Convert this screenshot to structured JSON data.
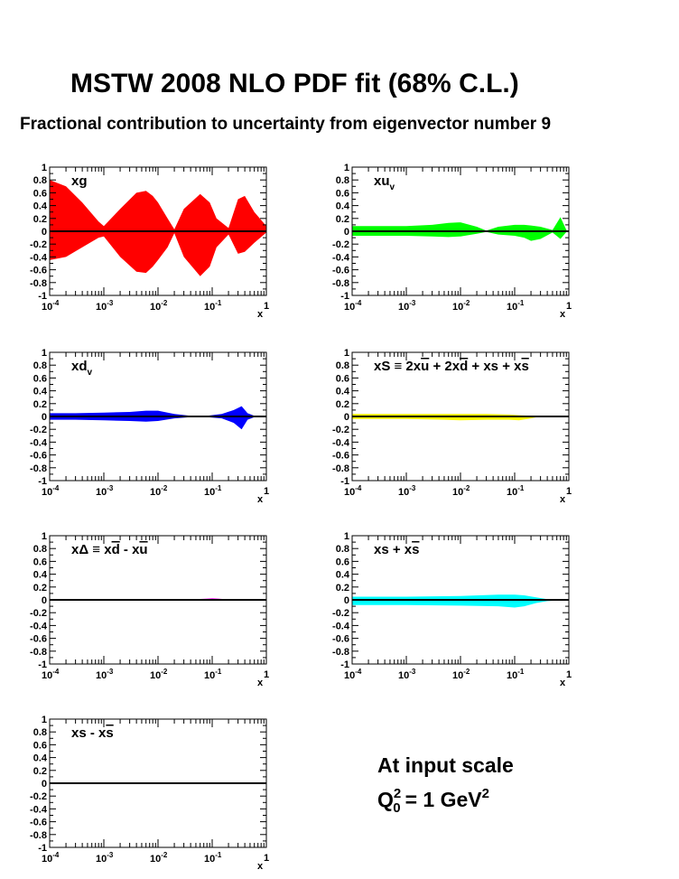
{
  "title": "MSTW 2008 NLO PDF fit (68% C.L.)",
  "subtitle": "Fractional contribution to uncertainty from eigenvector number 9",
  "note": {
    "line1": "At input scale",
    "q": "Q",
    "sub0": "0",
    "sup2": "2",
    "eq": "= 1 GeV",
    "gev_sup": "2"
  },
  "chart_data": [
    {
      "type": "area",
      "panel": "xg",
      "color": "#ff0000",
      "label": [
        {
          "t": "xg"
        }
      ],
      "xscale": "log",
      "xlim": [
        0.0001,
        1
      ],
      "ylim": [
        -1,
        1
      ],
      "xlabel": "x",
      "x": [
        0.0001,
        0.0002,
        0.0004,
        0.0008,
        0.001,
        0.002,
        0.004,
        0.006,
        0.008,
        0.01,
        0.015,
        0.02,
        0.03,
        0.06,
        0.09,
        0.12,
        0.2,
        0.3,
        0.4,
        0.6,
        1
      ],
      "upper": [
        0.8,
        0.7,
        0.45,
        0.15,
        0.08,
        0.35,
        0.6,
        0.63,
        0.55,
        0.45,
        0.2,
        0.03,
        0.35,
        0.58,
        0.45,
        0.2,
        0.05,
        0.5,
        0.55,
        0.3,
        0.08
      ],
      "lower": [
        -0.45,
        -0.4,
        -0.25,
        -0.1,
        -0.08,
        -0.4,
        -0.63,
        -0.65,
        -0.55,
        -0.45,
        -0.25,
        -0.03,
        -0.4,
        -0.7,
        -0.55,
        -0.25,
        -0.05,
        -0.35,
        -0.32,
        -0.18,
        -0.02
      ]
    },
    {
      "type": "area",
      "panel": "xuv",
      "color": "#00ff00",
      "label": [
        {
          "t": "xu"
        },
        {
          "t": "v",
          "sub": true
        }
      ],
      "xscale": "log",
      "xlim": [
        0.0001,
        1
      ],
      "ylim": [
        -1,
        1
      ],
      "xlabel": "x",
      "x": [
        0.0001,
        0.0003,
        0.001,
        0.003,
        0.006,
        0.01,
        0.02,
        0.03,
        0.05,
        0.1,
        0.15,
        0.2,
        0.3,
        0.5,
        0.7,
        0.9,
        1
      ],
      "upper": [
        0.08,
        0.08,
        0.08,
        0.1,
        0.13,
        0.14,
        0.07,
        0.01,
        0.07,
        0.1,
        0.1,
        0.09,
        0.07,
        0.02,
        0.22,
        0.02,
        0
      ],
      "lower": [
        -0.07,
        -0.07,
        -0.07,
        -0.08,
        -0.09,
        -0.08,
        -0.04,
        -0.01,
        -0.05,
        -0.07,
        -0.1,
        -0.15,
        -0.12,
        -0.02,
        -0.12,
        -0.01,
        0
      ]
    },
    {
      "type": "area",
      "panel": "xdv",
      "color": "#0000ff",
      "label": [
        {
          "t": "xd"
        },
        {
          "t": "v",
          "sub": true
        }
      ],
      "xscale": "log",
      "xlim": [
        0.0001,
        1
      ],
      "ylim": [
        -1,
        1
      ],
      "xlabel": "x",
      "x": [
        0.0001,
        0.0003,
        0.001,
        0.003,
        0.006,
        0.01,
        0.02,
        0.04,
        0.08,
        0.15,
        0.25,
        0.35,
        0.45,
        0.6,
        1
      ],
      "upper": [
        0.05,
        0.05,
        0.06,
        0.07,
        0.09,
        0.09,
        0.04,
        0.01,
        0.01,
        0.04,
        0.1,
        0.16,
        0.05,
        0.01,
        0
      ],
      "lower": [
        -0.05,
        -0.05,
        -0.06,
        -0.07,
        -0.08,
        -0.07,
        -0.03,
        -0.01,
        -0.01,
        -0.03,
        -0.1,
        -0.2,
        -0.05,
        -0.01,
        0
      ]
    },
    {
      "type": "area",
      "panel": "xS",
      "color": "#ffff00",
      "label": [
        {
          "t": "xS ≡ 2x"
        },
        {
          "t": "u",
          "bar": true
        },
        {
          "t": " + 2x"
        },
        {
          "t": "d",
          "bar": true
        },
        {
          "t": " + xs + x"
        },
        {
          "t": "s",
          "bar": true
        }
      ],
      "xscale": "log",
      "xlim": [
        0.0001,
        1
      ],
      "ylim": [
        -1,
        1
      ],
      "xlabel": "x",
      "x": [
        0.0001,
        0.001,
        0.005,
        0.01,
        0.03,
        0.08,
        0.12,
        0.2,
        0.3,
        1
      ],
      "upper": [
        0.04,
        0.04,
        0.04,
        0.04,
        0.04,
        0.03,
        0.02,
        0.01,
        0,
        0
      ],
      "lower": [
        -0.04,
        -0.04,
        -0.05,
        -0.06,
        -0.05,
        -0.05,
        -0.06,
        -0.03,
        0,
        0
      ]
    },
    {
      "type": "area",
      "panel": "xDelta",
      "color": "#ff00ff",
      "label": [
        {
          "t": "xΔ ≡ x"
        },
        {
          "t": "d",
          "bar": true
        },
        {
          "t": " - x"
        },
        {
          "t": "u",
          "bar": true
        }
      ],
      "xscale": "log",
      "xlim": [
        0.0001,
        1
      ],
      "ylim": [
        -1,
        1
      ],
      "xlabel": "x",
      "x": [
        0.0001,
        0.01,
        0.05,
        0.08,
        0.1,
        0.13,
        0.2,
        1
      ],
      "upper": [
        0.005,
        0.005,
        0.01,
        0.02,
        0.025,
        0.02,
        0.005,
        0
      ],
      "lower": [
        -0.005,
        -0.005,
        -0.005,
        -0.005,
        -0.005,
        -0.005,
        -0.005,
        0
      ]
    },
    {
      "type": "area",
      "panel": "xs+xsbar",
      "color": "#00ffff",
      "label": [
        {
          "t": "xs + x"
        },
        {
          "t": "s",
          "bar": true
        }
      ],
      "xscale": "log",
      "xlim": [
        0.0001,
        1
      ],
      "ylim": [
        -1,
        1
      ],
      "xlabel": "x",
      "x": [
        0.0001,
        0.001,
        0.01,
        0.05,
        0.1,
        0.15,
        0.25,
        0.4,
        1
      ],
      "upper": [
        0.05,
        0.05,
        0.06,
        0.08,
        0.08,
        0.07,
        0.04,
        0.01,
        0
      ],
      "lower": [
        -0.08,
        -0.08,
        -0.09,
        -0.1,
        -0.12,
        -0.1,
        -0.05,
        -0.02,
        0
      ]
    },
    {
      "type": "area",
      "panel": "xs-xsbar",
      "color": "#008000",
      "label": [
        {
          "t": "xs - x"
        },
        {
          "t": "s",
          "bar": true
        }
      ],
      "xscale": "log",
      "xlim": [
        0.0001,
        1
      ],
      "ylim": [
        -1,
        1
      ],
      "xlabel": "x",
      "x": [
        0.0001,
        1
      ],
      "upper": [
        0,
        0
      ],
      "lower": [
        0,
        0
      ]
    }
  ],
  "y_ticks": [
    "1",
    "0.8",
    "0.6",
    "0.4",
    "0.2",
    "0",
    "-0.2",
    "-0.4",
    "-0.6",
    "-0.8",
    "-1"
  ],
  "x_tick_base": "10",
  "x_tick_exps": [
    "-4",
    "-3",
    "-2",
    "-1"
  ],
  "x_tick_last": "1"
}
